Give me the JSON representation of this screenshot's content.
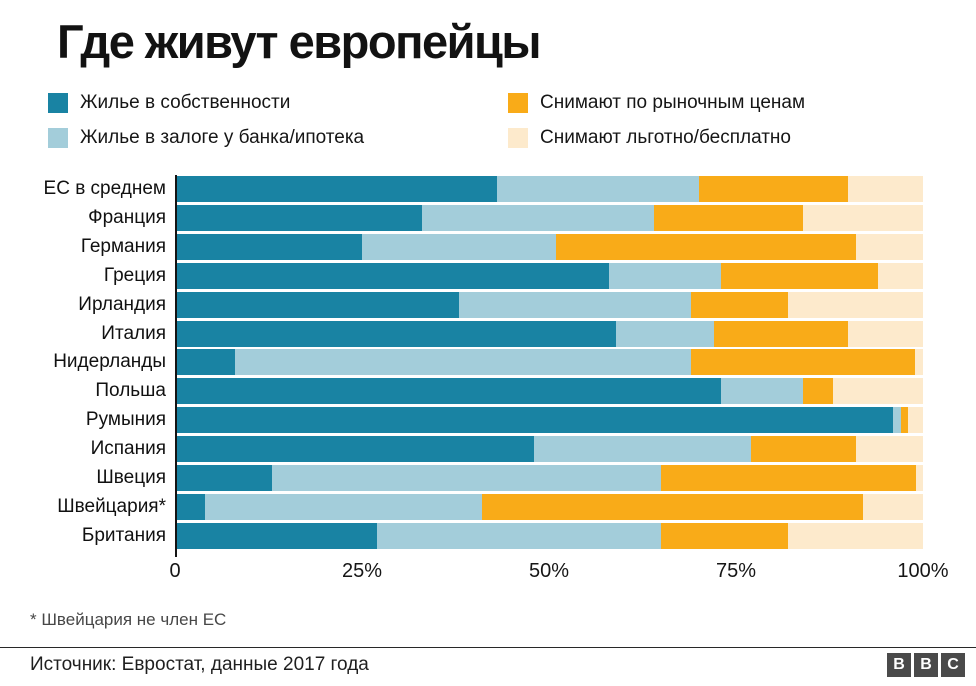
{
  "title": "Где живут европейцы",
  "legend": {
    "items": [
      {
        "label": "Жилье в собственности",
        "color": "#1983a3"
      },
      {
        "label": "Снимают по рыночным ценам",
        "color": "#f9ab18"
      },
      {
        "label": "Жилье в залоге у банка/ипотека",
        "color": "#a3cdda"
      },
      {
        "label": "Снимают льготно/бесплатно",
        "color": "#fdeacc"
      }
    ]
  },
  "chart_data": {
    "type": "bar",
    "orientation": "horizontal",
    "stacked": true,
    "unit": "%",
    "title": "Где живут европейцы",
    "categories": [
      "ЕС в среднем",
      "Франция",
      "Германия",
      "Греция",
      "Ирландия",
      "Италия",
      "Нидерланды",
      "Польша",
      "Румыния",
      "Испания",
      "Швеция",
      "Швейцария*",
      "Британия"
    ],
    "series": [
      {
        "name": "Жилье в собственности",
        "color": "#1983a3",
        "values": [
          43,
          33,
          25,
          58,
          38,
          59,
          8,
          73,
          96,
          48,
          13,
          4,
          27
        ]
      },
      {
        "name": "Жилье в залоге у банка/ипотека",
        "color": "#a3cdda",
        "values": [
          27,
          31,
          26,
          15,
          31,
          13,
          61,
          11,
          1,
          29,
          52,
          37,
          38
        ]
      },
      {
        "name": "Снимают по рыночным ценам",
        "color": "#f9ab18",
        "values": [
          20,
          20,
          40,
          21,
          13,
          18,
          30,
          4,
          1,
          14,
          34,
          51,
          17
        ]
      },
      {
        "name": "Снимают льготно/бесплатно",
        "color": "#fdeacc",
        "values": [
          10,
          16,
          9,
          6,
          18,
          10,
          1,
          12,
          2,
          9,
          1,
          8,
          18
        ]
      }
    ],
    "x_ticks": [
      "0",
      "25%",
      "50%",
      "75%",
      "100%"
    ],
    "xlim": [
      0,
      100
    ],
    "grid": false,
    "legend_position": "top"
  },
  "footnote": "* Швейцария не член ЕС",
  "source": "Источник: Евростат, данные 2017 года",
  "logo": {
    "letters": [
      "B",
      "B",
      "C"
    ]
  }
}
